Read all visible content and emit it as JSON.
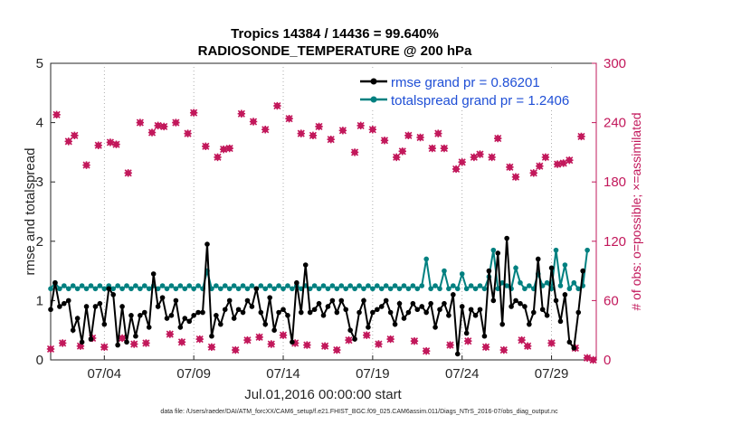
{
  "chart_data": {
    "type": "line",
    "title_line1": "Tropics 14384 / 14436 = 99.640%",
    "title_line2": "RADIOSONDE_TEMPERATURE @ 200 hPa",
    "xlabel": "Jul.01,2016 00:00:00 start",
    "ylabel_left": "rmse and totalspread",
    "ylabel_right": "# of obs: o=possible; ×=assimilated",
    "footnote": "data file: /Users/raeder/DAI/ATM_forcXX/CAM6_setup/f.e21.FHIST_BGC.f09_025.CAM6assim.011/Diags_NTrS_2016-07/obs_diag_output.nc",
    "x_ticks": [
      "07/04",
      "07/09",
      "07/14",
      "07/19",
      "07/24",
      "07/29"
    ],
    "x_tick_days": [
      4,
      9,
      14,
      19,
      24,
      29
    ],
    "xlim": [
      1,
      31.5
    ],
    "ylim_left": [
      0,
      5
    ],
    "left_ticks": [
      "0",
      "1",
      "2",
      "3",
      "4",
      "5"
    ],
    "ylim_right": [
      0,
      300
    ],
    "right_ticks": [
      "0",
      "60",
      "120",
      "180",
      "240",
      "300"
    ],
    "legend": {
      "rmse": "rmse grand pr = 0.86201",
      "spread": "totalspread grand pr = 1.2406"
    },
    "colors": {
      "rmse": "#000000",
      "spread": "#008080",
      "obs": "#c2185b",
      "legend_text": "#1f4fd6"
    },
    "series": [
      {
        "name": "rmse",
        "values": [
          0.85,
          1.3,
          0.9,
          0.95,
          1.0,
          0.5,
          0.7,
          0.3,
          0.9,
          0.35,
          0.9,
          0.95,
          0.6,
          1.2,
          1.1,
          0.25,
          0.9,
          0.3,
          0.75,
          0.4,
          0.75,
          0.8,
          0.55,
          1.45,
          0.9,
          1.05,
          0.7,
          0.75,
          1.0,
          0.55,
          0.7,
          0.65,
          0.75,
          0.8,
          0.8,
          1.95,
          0.4,
          0.75,
          0.6,
          0.85,
          1.0,
          0.7,
          0.85,
          0.8,
          1.0,
          0.9,
          1.2,
          0.8,
          0.6,
          1.05,
          0.5,
          0.8,
          0.85,
          0.75,
          0.3,
          1.3,
          0.8,
          1.6,
          0.8,
          0.85,
          0.95,
          0.75,
          0.9,
          1.0,
          0.8,
          1.0,
          0.85,
          0.5,
          0.35,
          0.8,
          1.0,
          0.55,
          0.8,
          0.85,
          0.9,
          1.0,
          0.8,
          0.6,
          0.95,
          0.7,
          0.8,
          0.95,
          0.85,
          0.9,
          0.8,
          0.95,
          0.55,
          0.85,
          0.95,
          0.75,
          1.1,
          0.1,
          0.9,
          0.45,
          0.85,
          0.75,
          0.85,
          0.4,
          1.5,
          1.0,
          1.8,
          0.6,
          2.05,
          0.9,
          1.0,
          0.95,
          0.9,
          0.6,
          0.8,
          1.7,
          0.85,
          0.75,
          1.55,
          1.0,
          0.65,
          1.1,
          0.3,
          0.2,
          0.8,
          1.5
        ],
        "x_start": 1.0,
        "x_step": 0.25
      },
      {
        "name": "totalspread",
        "values": [
          1.2,
          1.3,
          1.2,
          1.25,
          1.2,
          1.25,
          1.2,
          1.25,
          1.2,
          1.25,
          1.2,
          1.25,
          1.2,
          1.25,
          1.2,
          1.25,
          1.2,
          1.25,
          1.2,
          1.25,
          1.2,
          1.25,
          1.2,
          1.25,
          1.2,
          1.25,
          1.2,
          1.25,
          1.2,
          1.25,
          1.2,
          1.25,
          1.2,
          1.25,
          1.2,
          1.5,
          1.2,
          1.25,
          1.2,
          1.25,
          1.2,
          1.25,
          1.2,
          1.25,
          1.2,
          1.25,
          1.2,
          1.25,
          1.2,
          1.25,
          1.2,
          1.25,
          1.2,
          1.25,
          1.2,
          1.25,
          1.2,
          1.25,
          1.2,
          1.25,
          1.2,
          1.25,
          1.2,
          1.25,
          1.2,
          1.25,
          1.2,
          1.25,
          1.2,
          1.25,
          1.2,
          1.25,
          1.2,
          1.25,
          1.2,
          1.25,
          1.2,
          1.25,
          1.2,
          1.25,
          1.2,
          1.25,
          1.2,
          1.25,
          1.7,
          1.2,
          1.25,
          1.2,
          1.5,
          1.2,
          1.25,
          1.2,
          1.45,
          1.2,
          1.25,
          1.2,
          1.25,
          1.2,
          1.4,
          1.85,
          1.2,
          1.3,
          1.25,
          1.2,
          1.55,
          1.3,
          1.2,
          1.25,
          1.2,
          1.45,
          1.25,
          1.3,
          1.2,
          1.85,
          1.25,
          1.6,
          1.2,
          1.3,
          1.2,
          1.25,
          1.85
        ],
        "x_start": 1.0,
        "x_step": 0.25
      },
      {
        "name": "obs_possible",
        "values": [
          11,
          248,
          17,
          221,
          227,
          14,
          197,
          22,
          217,
          13,
          220,
          218,
          22,
          189,
          16,
          240,
          17,
          230,
          237,
          236,
          26,
          240,
          18,
          229,
          250,
          21,
          216,
          13,
          205,
          213,
          214,
          10,
          249,
          20,
          241,
          23,
          233,
          16,
          257,
          25,
          244,
          17,
          229,
          15,
          227,
          236,
          14,
          223,
          10,
          232,
          20,
          210,
          237,
          25,
          233,
          16,
          222,
          21,
          205,
          211,
          227,
          19,
          225,
          9,
          214,
          229,
          214,
          15,
          193,
          200,
          19,
          205,
          208,
          13,
          205,
          224,
          10,
          195,
          185,
          20,
          14,
          189,
          196,
          205,
          17,
          198,
          199,
          202,
          12,
          226,
          2,
          0
        ],
        "x_start": 1.0,
        "x_step": 0.3333,
        "note": "visible o markers (possible obs)"
      },
      {
        "name": "obs_assimilated",
        "values": [
          11,
          248,
          17,
          221,
          227,
          14,
          197,
          22,
          217,
          13,
          220,
          218,
          22,
          189,
          16,
          240,
          17,
          230,
          237,
          236,
          26,
          240,
          18,
          229,
          250,
          21,
          216,
          13,
          205,
          213,
          214,
          10,
          249,
          20,
          241,
          23,
          233,
          16,
          257,
          25,
          244,
          17,
          229,
          15,
          227,
          236,
          14,
          223,
          10,
          232,
          20,
          210,
          237,
          25,
          233,
          16,
          222,
          21,
          205,
          211,
          227,
          19,
          225,
          9,
          214,
          229,
          214,
          15,
          193,
          200,
          19,
          205,
          208,
          13,
          205,
          224,
          10,
          195,
          185,
          20,
          14,
          189,
          196,
          205,
          17,
          198,
          199,
          202,
          12,
          226,
          2,
          0
        ],
        "x_start": 1.0,
        "x_step": 0.3333,
        "note": "× markers (assimilated obs)"
      }
    ]
  }
}
